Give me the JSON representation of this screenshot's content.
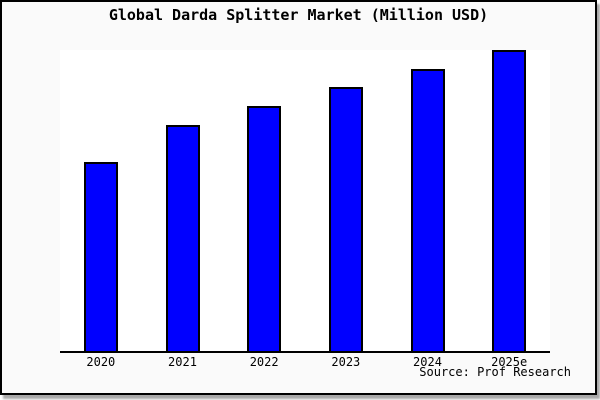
{
  "chart_data": {
    "type": "bar",
    "title": "Global Darda Splitter Market (Million USD)",
    "categories": [
      "2020",
      "2021",
      "2022",
      "2023",
      "2024",
      "2025e"
    ],
    "values": [
      62.8,
      75.1,
      81.4,
      87.7,
      93.7,
      100
    ],
    "xlabel": "",
    "ylabel": "",
    "ylim": [
      0,
      100
    ],
    "y_axis_labels_visible": false,
    "grid": false,
    "legend_position": "none",
    "annotation": "Source: Prof Research",
    "bar_color": "#0000FF",
    "bar_edge_color": "#000000",
    "plot_bg": "#FFFFFF",
    "figure_bg": "#FAFAFA",
    "frame_color": "#000000"
  }
}
